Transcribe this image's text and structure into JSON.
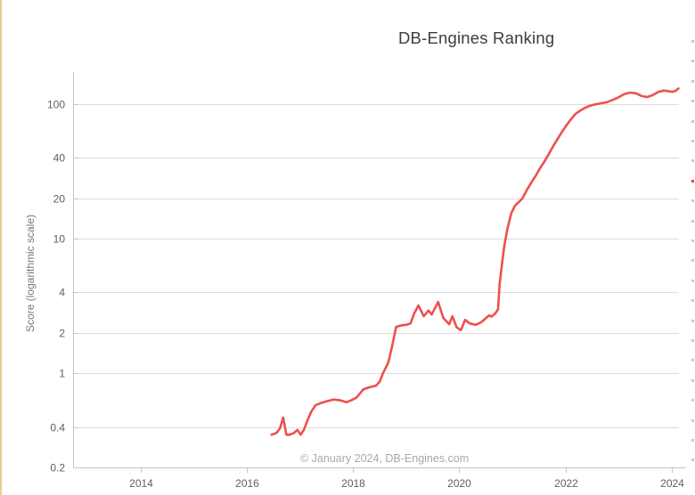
{
  "title": "DB-Engines Ranking",
  "watermark": "© January 2024, DB-Engines.com",
  "colors": {
    "line": "#ee504d",
    "axis": "#b9c8d6",
    "grid": "#dcdcdc",
    "tick_text": "#5f5f5f",
    "title_text": "#3c3c3c",
    "watermark_text": "#a9a9a9",
    "left_accent": "#e9cd92"
  },
  "right_panel_markers": {
    "x": 776,
    "start_y": 45,
    "spacing": 22.4,
    "count": 22,
    "red_index": 7,
    "gray_color": "#c9c9c9",
    "red_color": "#e0443f"
  },
  "chart_data": {
    "type": "line",
    "title": "DB-Engines Ranking",
    "xlabel": "",
    "ylabel": "Score (logarithmic scale)",
    "y_scale": "log",
    "grid": "horizontal",
    "legend_position": "none",
    "x_ticks": [
      2014,
      2016,
      2018,
      2020,
      2022,
      2024
    ],
    "y_ticks": [
      0.2,
      0.4,
      1,
      2,
      4,
      10,
      20,
      40,
      100
    ],
    "xlim": [
      2012.72,
      2024.14
    ],
    "ylim": [
      0.2,
      174
    ],
    "series": [
      {
        "name": "score",
        "color": "#ee504d",
        "points": [
          [
            2016.46,
            0.35
          ],
          [
            2016.55,
            0.36
          ],
          [
            2016.62,
            0.39
          ],
          [
            2016.68,
            0.47
          ],
          [
            2016.74,
            0.35
          ],
          [
            2016.8,
            0.35
          ],
          [
            2016.88,
            0.36
          ],
          [
            2016.95,
            0.38
          ],
          [
            2017.01,
            0.35
          ],
          [
            2017.07,
            0.38
          ],
          [
            2017.14,
            0.45
          ],
          [
            2017.21,
            0.52
          ],
          [
            2017.29,
            0.58
          ],
          [
            2017.38,
            0.6
          ],
          [
            2017.5,
            0.62
          ],
          [
            2017.63,
            0.64
          ],
          [
            2017.76,
            0.63
          ],
          [
            2017.87,
            0.61
          ],
          [
            2017.96,
            0.63
          ],
          [
            2018.06,
            0.66
          ],
          [
            2018.19,
            0.76
          ],
          [
            2018.31,
            0.79
          ],
          [
            2018.43,
            0.81
          ],
          [
            2018.5,
            0.87
          ],
          [
            2018.56,
            1.0
          ],
          [
            2018.66,
            1.2
          ],
          [
            2018.73,
            1.57
          ],
          [
            2018.81,
            2.22
          ],
          [
            2018.9,
            2.27
          ],
          [
            2019.0,
            2.3
          ],
          [
            2019.08,
            2.35
          ],
          [
            2019.15,
            2.8
          ],
          [
            2019.23,
            3.2
          ],
          [
            2019.33,
            2.66
          ],
          [
            2019.42,
            2.94
          ],
          [
            2019.48,
            2.74
          ],
          [
            2019.6,
            3.4
          ],
          [
            2019.7,
            2.58
          ],
          [
            2019.81,
            2.32
          ],
          [
            2019.87,
            2.66
          ],
          [
            2019.95,
            2.2
          ],
          [
            2020.03,
            2.1
          ],
          [
            2020.11,
            2.5
          ],
          [
            2020.2,
            2.35
          ],
          [
            2020.31,
            2.3
          ],
          [
            2020.41,
            2.4
          ],
          [
            2020.49,
            2.55
          ],
          [
            2020.56,
            2.7
          ],
          [
            2020.61,
            2.65
          ],
          [
            2020.68,
            2.8
          ],
          [
            2020.73,
            3.0
          ],
          [
            2020.76,
            4.6
          ],
          [
            2020.8,
            6.3
          ],
          [
            2020.85,
            9.0
          ],
          [
            2020.91,
            12.1
          ],
          [
            2020.98,
            15.5
          ],
          [
            2021.05,
            17.7
          ],
          [
            2021.12,
            18.8
          ],
          [
            2021.19,
            20.0
          ],
          [
            2021.27,
            23.0
          ],
          [
            2021.35,
            26.0
          ],
          [
            2021.44,
            29.5
          ],
          [
            2021.52,
            33.5
          ],
          [
            2021.61,
            38.0
          ],
          [
            2021.69,
            43.0
          ],
          [
            2021.77,
            49.0
          ],
          [
            2021.86,
            56.0
          ],
          [
            2021.94,
            63.0
          ],
          [
            2022.03,
            71.0
          ],
          [
            2022.11,
            78.0
          ],
          [
            2022.19,
            85.0
          ],
          [
            2022.28,
            90.0
          ],
          [
            2022.36,
            94.0
          ],
          [
            2022.45,
            97.5
          ],
          [
            2022.56,
            100
          ],
          [
            2022.67,
            102
          ],
          [
            2022.78,
            104
          ],
          [
            2022.89,
            108
          ],
          [
            2023.0,
            113
          ],
          [
            2023.11,
            119.5
          ],
          [
            2023.22,
            122.5
          ],
          [
            2023.33,
            121
          ],
          [
            2023.44,
            115.5
          ],
          [
            2023.54,
            113.5
          ],
          [
            2023.64,
            117
          ],
          [
            2023.75,
            124
          ],
          [
            2023.86,
            127
          ],
          [
            2023.94,
            125.5
          ],
          [
            2024.02,
            124
          ],
          [
            2024.07,
            126
          ],
          [
            2024.13,
            131.5
          ]
        ]
      }
    ]
  }
}
